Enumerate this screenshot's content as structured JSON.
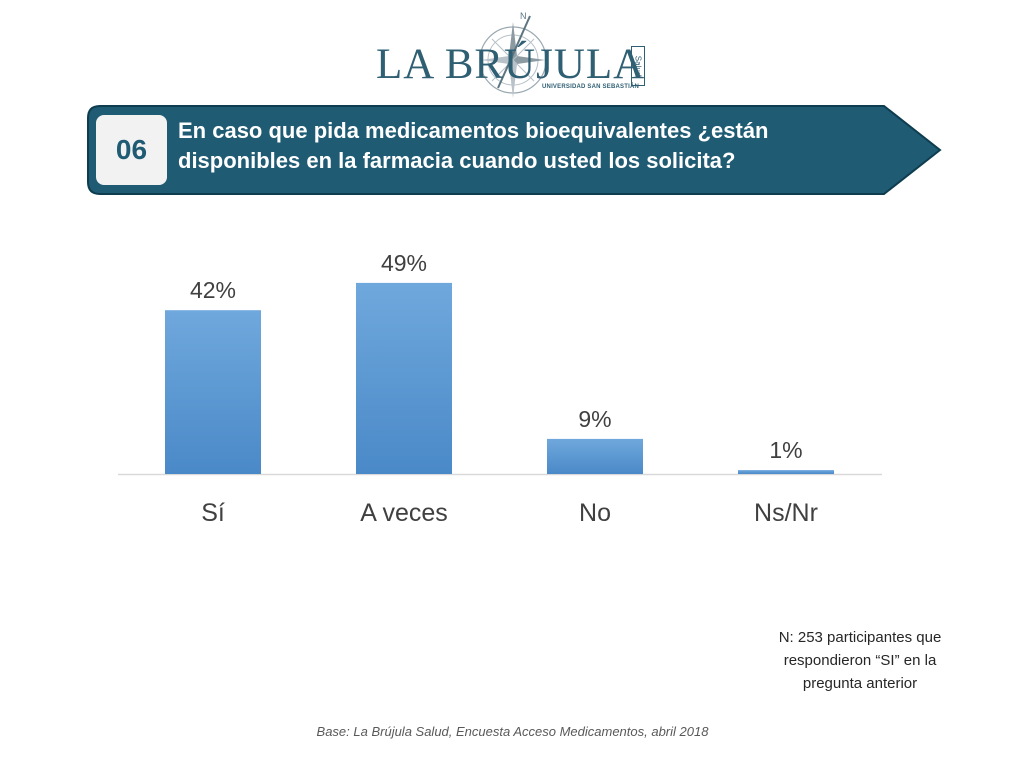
{
  "logo": {
    "name": "LA BRÚJULA",
    "sub": "UNIVERSIDAD SAN SEBASTIÁN",
    "side": "Salud",
    "compass_mark": "N"
  },
  "question": {
    "number": "06",
    "text": "En caso que pida medicamentos bioequivalentes ¿están disponibles en la farmacia cuando usted los solicita?"
  },
  "chart_data": {
    "type": "bar",
    "categories": [
      "Sí",
      "A veces",
      "No",
      "Ns/Nr"
    ],
    "values": [
      42,
      49,
      9,
      1
    ],
    "value_labels": [
      "42%",
      "49%",
      "9%",
      "1%"
    ],
    "ylim": [
      0,
      50
    ],
    "grid": false,
    "bar_color": "#5b9bd5"
  },
  "note": "N: 253 participantes que respondieron “SI” en la pregunta anterior",
  "source": "Base: La Brújula Salud, Encuesta Acceso Medicamentos, abril 2018",
  "colors": {
    "banner": "#1f5b73",
    "accent": "#2f5f73"
  }
}
